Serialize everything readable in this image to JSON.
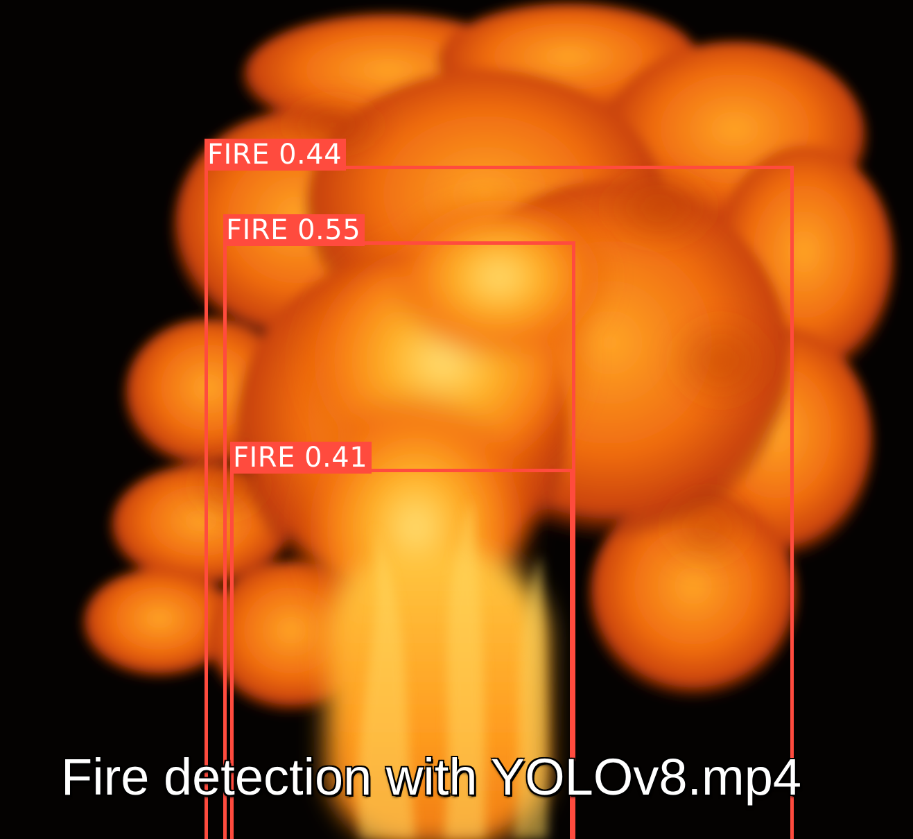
{
  "video": {
    "caption": "Fire detection with YOLOv8.mp4"
  },
  "detections": [
    {
      "label": "FIRE 0.44",
      "class": "FIRE",
      "confidence": 0.44
    },
    {
      "label": "FIRE 0.55",
      "class": "FIRE",
      "confidence": 0.55
    },
    {
      "label": "FIRE 0.41",
      "class": "FIRE",
      "confidence": 0.41
    }
  ],
  "colors": {
    "box": "#ff4b3e",
    "label_text": "#ffffff",
    "background": "#040201",
    "fire_core": "#ffd24a",
    "fire_mid": "#ff9a1a",
    "fire_edge": "#e5530a"
  }
}
